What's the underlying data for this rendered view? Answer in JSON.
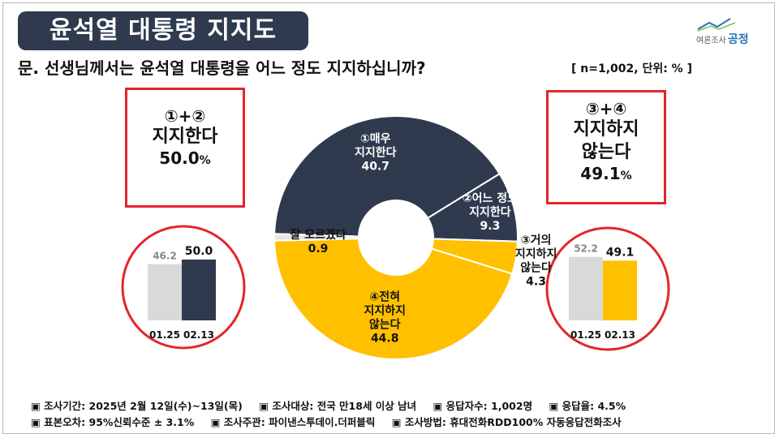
{
  "header": {
    "title": "윤석열 대통령 지지도",
    "logo_small": "여론조사",
    "logo_strong": "공정",
    "question": "문. 선생님께서는 윤석열 대통령을 어느 정도 지지하십니까?",
    "unit": "[ n=1,002, 단위: % ]"
  },
  "left_summary": {
    "head": "①+②",
    "label": "지지한다",
    "value": "50.0",
    "pct_sign": "%"
  },
  "right_summary": {
    "head": "③+④",
    "label_1": "지지하지",
    "label_2": "않는다",
    "value": "49.1",
    "pct_sign": "%"
  },
  "colors": {
    "navy": "#2f3a4f",
    "gold": "#ffc000",
    "gray": "#d9d9d9",
    "light_gray": "#e6e6e6",
    "red": "#e3262b"
  },
  "chart_data": [
    {
      "type": "pie",
      "subtype": "donut",
      "slices": [
        {
          "num": "①",
          "label_lines": [
            "매우",
            "지지한다"
          ],
          "value": 40.7,
          "color": "#2f3a4f"
        },
        {
          "num": "②",
          "label_lines": [
            "어느 정도",
            "지지한다"
          ],
          "value": 9.3,
          "color": "#2f3a4f"
        },
        {
          "num": "③",
          "label_lines": [
            "거의",
            "지지하지",
            "않는다"
          ],
          "value": 4.3,
          "color": "#ffc000"
        },
        {
          "num": "④",
          "label_lines": [
            "전혀",
            "지지하지",
            "않는다"
          ],
          "value": 44.8,
          "color": "#ffc000"
        },
        {
          "num": "",
          "label_lines": [
            "잘 모르겠다"
          ],
          "value": 0.9,
          "color": "#e6e6e6"
        }
      ]
    },
    {
      "type": "bar",
      "categories": [
        "01.25",
        "02.13"
      ],
      "values": [
        46.2,
        50.0
      ],
      "labels": [
        "46.2",
        "50.0"
      ],
      "colors": [
        "#d9d9d9",
        "#2f3a4f"
      ],
      "ylim": [
        0,
        60
      ]
    },
    {
      "type": "bar",
      "categories": [
        "01.25",
        "02.13"
      ],
      "values": [
        52.2,
        49.1
      ],
      "labels": [
        "52.2",
        "49.1"
      ],
      "colors": [
        "#d9d9d9",
        "#ffc000"
      ],
      "ylim": [
        0,
        60
      ]
    }
  ],
  "footer": {
    "row1": [
      "▣ 조사기간: 2025년 2월 12일(수)~13일(목)",
      "▣ 조사대상: 전국 만18세 이상 남녀",
      "▣ 응답자수: 1,002명",
      "▣ 응답율: 4.5%"
    ],
    "row2": [
      "▣ 표본오차: 95%신뢰수준 ± 3.1%",
      "▣ 조사주관: 파이낸스투데이.더퍼블릭",
      "▣ 조사방법: 휴대전화RDD100% 자동응답전화조사"
    ]
  }
}
